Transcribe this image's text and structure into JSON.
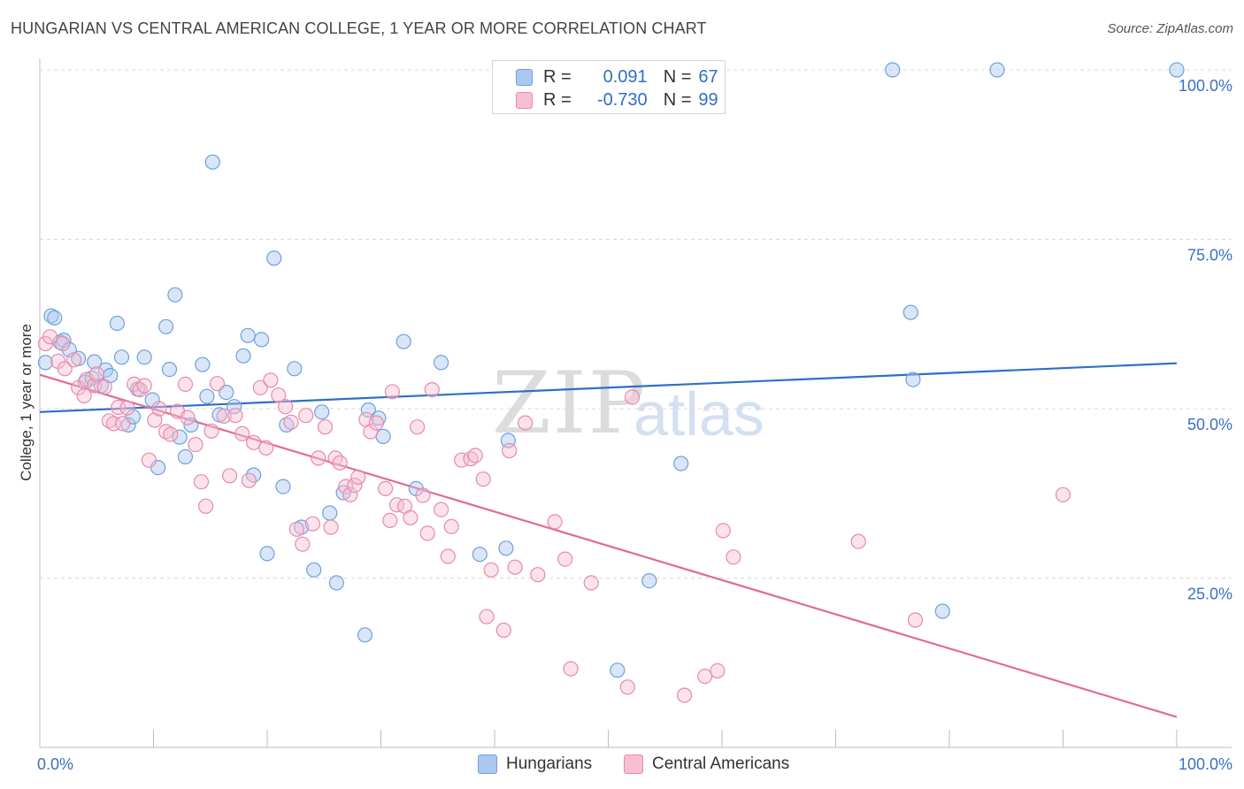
{
  "title": "HUNGARIAN VS CENTRAL AMERICAN COLLEGE, 1 YEAR OR MORE CORRELATION CHART",
  "source": "Source: ZipAtlas.com",
  "watermark": {
    "main": "ZIP",
    "sub": "atlas"
  },
  "legend": {
    "rows": [
      {
        "r_label": "R =",
        "r_value": "0.091",
        "n_label": "N =",
        "n_value": "67",
        "color": "#aac8f0",
        "border": "#6fa0dd"
      },
      {
        "r_label": "R =",
        "r_value": "-0.730",
        "n_label": "N =",
        "n_value": "99",
        "color": "#f7bfd2",
        "border": "#e88aab"
      }
    ]
  },
  "bottom_legend": [
    {
      "label": "Hungarians",
      "color": "#aac8f0",
      "border": "#6fa0dd"
    },
    {
      "label": "Central Americans",
      "color": "#f7bfd2",
      "border": "#e88aab"
    }
  ],
  "chart_data": {
    "type": "scatter",
    "title": "HUNGARIAN VS CENTRAL AMERICAN COLLEGE, 1 YEAR OR MORE CORRELATION CHART",
    "xlabel": "",
    "ylabel": "College, 1 year or more",
    "xlim": [
      0,
      100
    ],
    "ylim": [
      0,
      100
    ],
    "x_tick_labels": [
      "0.0%",
      "100.0%"
    ],
    "y_tick_labels": [
      "25.0%",
      "50.0%",
      "75.0%",
      "100.0%"
    ],
    "y_ticks": [
      25,
      50,
      75,
      100
    ],
    "grid": true,
    "series": [
      {
        "name": "Hungarians",
        "color": "#6fa0dd",
        "fill": "#aac8f0",
        "line_color": "#2f6fc7",
        "trend": [
          [
            0,
            49.5
          ],
          [
            100,
            56.7
          ]
        ],
        "points": [
          [
            0.5,
            56.8
          ],
          [
            1.0,
            63.7
          ],
          [
            1.3,
            63.4
          ],
          [
            1.8,
            59.8
          ],
          [
            2.1,
            60.1
          ],
          [
            2.6,
            58.7
          ],
          [
            3.4,
            57.4
          ],
          [
            4.0,
            53.9
          ],
          [
            4.6,
            54.5
          ],
          [
            4.8,
            56.9
          ],
          [
            5.4,
            53.4
          ],
          [
            5.8,
            55.7
          ],
          [
            6.2,
            54.9
          ],
          [
            6.8,
            62.6
          ],
          [
            7.2,
            57.6
          ],
          [
            7.8,
            47.6
          ],
          [
            8.2,
            48.8
          ],
          [
            8.6,
            52.9
          ],
          [
            9.2,
            57.6
          ],
          [
            9.9,
            51.3
          ],
          [
            10.4,
            41.3
          ],
          [
            11.1,
            62.1
          ],
          [
            11.4,
            55.8
          ],
          [
            11.9,
            66.8
          ],
          [
            12.3,
            45.8
          ],
          [
            12.8,
            42.9
          ],
          [
            13.3,
            47.6
          ],
          [
            14.3,
            56.5
          ],
          [
            14.7,
            51.8
          ],
          [
            15.2,
            86.4
          ],
          [
            15.8,
            49.1
          ],
          [
            16.4,
            52.4
          ],
          [
            17.1,
            50.3
          ],
          [
            17.9,
            57.8
          ],
          [
            18.3,
            60.8
          ],
          [
            18.8,
            40.2
          ],
          [
            19.5,
            60.2
          ],
          [
            20.0,
            28.6
          ],
          [
            20.6,
            72.2
          ],
          [
            21.4,
            38.5
          ],
          [
            21.7,
            47.6
          ],
          [
            22.4,
            55.9
          ],
          [
            23.0,
            32.5
          ],
          [
            24.1,
            26.2
          ],
          [
            24.8,
            49.5
          ],
          [
            25.5,
            34.6
          ],
          [
            26.1,
            24.3
          ],
          [
            26.7,
            37.6
          ],
          [
            28.6,
            16.6
          ],
          [
            28.9,
            49.8
          ],
          [
            29.8,
            48.6
          ],
          [
            30.2,
            45.9
          ],
          [
            32.0,
            59.9
          ],
          [
            33.1,
            38.2
          ],
          [
            35.3,
            56.8
          ],
          [
            38.7,
            28.5
          ],
          [
            41.0,
            29.4
          ],
          [
            41.2,
            45.3
          ],
          [
            50.8,
            11.4
          ],
          [
            53.6,
            24.6
          ],
          [
            56.4,
            41.9
          ],
          [
            76.6,
            64.2
          ],
          [
            76.8,
            54.3
          ],
          [
            75.0,
            100
          ],
          [
            84.2,
            100
          ],
          [
            100,
            100
          ],
          [
            79.4,
            20.1
          ]
        ]
      },
      {
        "name": "Central Americans",
        "color": "#e88aab",
        "fill": "#f7bfd2",
        "line_color": "#e06b97",
        "trend": [
          [
            0,
            55.0
          ],
          [
            100,
            4.5
          ]
        ],
        "points": [
          [
            0.5,
            59.6
          ],
          [
            0.9,
            60.6
          ],
          [
            1.6,
            57.0
          ],
          [
            2.0,
            59.6
          ],
          [
            2.2,
            55.9
          ],
          [
            3.0,
            57.2
          ],
          [
            3.4,
            53.1
          ],
          [
            3.9,
            51.9
          ],
          [
            4.1,
            54.3
          ],
          [
            4.8,
            53.4
          ],
          [
            5.0,
            55.1
          ],
          [
            5.7,
            53.2
          ],
          [
            6.1,
            48.2
          ],
          [
            6.5,
            47.8
          ],
          [
            6.9,
            50.2
          ],
          [
            7.3,
            47.8
          ],
          [
            7.7,
            50.1
          ],
          [
            8.3,
            53.6
          ],
          [
            8.8,
            52.8
          ],
          [
            9.2,
            53.4
          ],
          [
            9.6,
            42.4
          ],
          [
            10.1,
            48.3
          ],
          [
            10.5,
            50.0
          ],
          [
            11.1,
            46.6
          ],
          [
            11.5,
            46.2
          ],
          [
            12.1,
            49.6
          ],
          [
            12.8,
            53.6
          ],
          [
            13.0,
            48.7
          ],
          [
            13.7,
            44.7
          ],
          [
            14.2,
            39.2
          ],
          [
            14.6,
            35.6
          ],
          [
            15.1,
            46.7
          ],
          [
            15.6,
            53.7
          ],
          [
            16.2,
            48.9
          ],
          [
            16.7,
            40.1
          ],
          [
            17.2,
            49.0
          ],
          [
            17.8,
            46.3
          ],
          [
            18.4,
            39.4
          ],
          [
            18.8,
            45.0
          ],
          [
            19.4,
            53.1
          ],
          [
            19.9,
            44.2
          ],
          [
            20.3,
            54.2
          ],
          [
            21.0,
            52.0
          ],
          [
            21.6,
            50.3
          ],
          [
            22.1,
            48.0
          ],
          [
            22.6,
            32.2
          ],
          [
            23.1,
            30.0
          ],
          [
            23.4,
            49.0
          ],
          [
            24.0,
            33.0
          ],
          [
            24.5,
            42.7
          ],
          [
            25.1,
            47.3
          ],
          [
            25.6,
            32.5
          ],
          [
            26.0,
            42.7
          ],
          [
            26.4,
            42.0
          ],
          [
            26.9,
            38.5
          ],
          [
            27.3,
            37.3
          ],
          [
            27.7,
            38.7
          ],
          [
            28.0,
            39.9
          ],
          [
            28.7,
            48.4
          ],
          [
            29.1,
            46.6
          ],
          [
            29.6,
            47.9
          ],
          [
            30.4,
            38.2
          ],
          [
            30.8,
            33.5
          ],
          [
            31.0,
            52.5
          ],
          [
            31.4,
            35.8
          ],
          [
            32.1,
            35.6
          ],
          [
            32.6,
            33.9
          ],
          [
            33.2,
            47.3
          ],
          [
            33.7,
            37.2
          ],
          [
            34.1,
            31.6
          ],
          [
            34.5,
            52.8
          ],
          [
            35.3,
            35.1
          ],
          [
            35.9,
            28.2
          ],
          [
            36.2,
            32.6
          ],
          [
            37.1,
            42.4
          ],
          [
            37.9,
            42.6
          ],
          [
            38.3,
            43.1
          ],
          [
            39.0,
            39.6
          ],
          [
            39.3,
            19.3
          ],
          [
            39.7,
            26.2
          ],
          [
            40.8,
            17.3
          ],
          [
            41.3,
            43.8
          ],
          [
            41.8,
            26.6
          ],
          [
            42.7,
            47.9
          ],
          [
            43.8,
            25.5
          ],
          [
            45.3,
            33.3
          ],
          [
            46.2,
            27.8
          ],
          [
            46.7,
            11.6
          ],
          [
            48.5,
            24.3
          ],
          [
            51.7,
            8.9
          ],
          [
            52.1,
            51.7
          ],
          [
            56.7,
            7.7
          ],
          [
            58.5,
            10.5
          ],
          [
            59.6,
            11.3
          ],
          [
            60.1,
            32.0
          ],
          [
            61.0,
            28.1
          ],
          [
            72.0,
            30.4
          ],
          [
            77.0,
            18.8
          ],
          [
            90.0,
            37.3
          ]
        ]
      }
    ]
  }
}
